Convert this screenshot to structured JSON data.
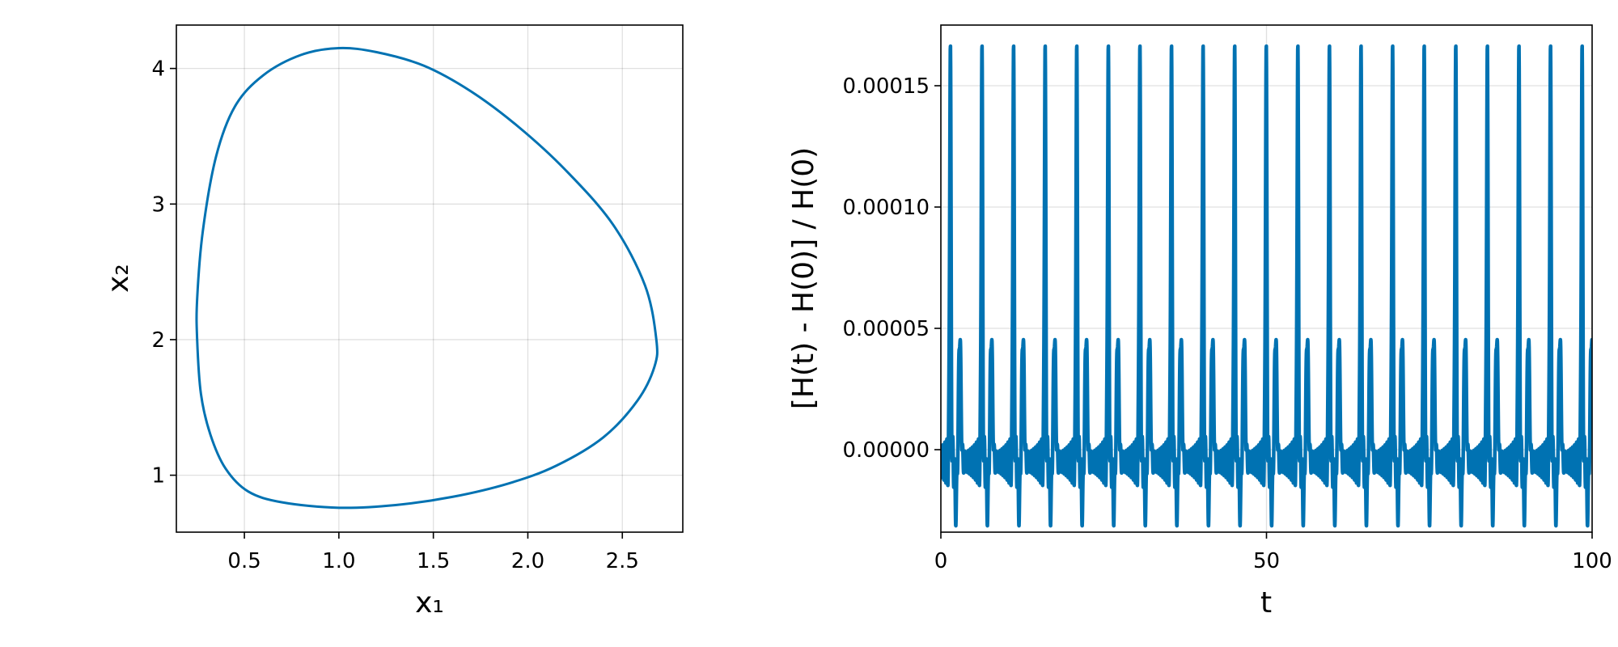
{
  "chart_data": [
    {
      "type": "line",
      "title": "",
      "xlabel": "x₁",
      "ylabel": "x₂",
      "xlim": [
        0.14,
        2.82
      ],
      "ylim": [
        0.58,
        4.32
      ],
      "xticks": [
        0.5,
        1.0,
        1.5,
        2.0,
        2.5
      ],
      "xtick_labels": [
        "0.5",
        "1.0",
        "1.5",
        "2.0",
        "2.5"
      ],
      "yticks": [
        1,
        2,
        3,
        4
      ],
      "ytick_labels": [
        "1",
        "2",
        "3",
        "4"
      ],
      "grid": true,
      "color": "#0072b2",
      "series": [
        {
          "closed": true,
          "points": [
            [
              2.68,
              2.0
            ],
            [
              2.62,
              2.4
            ],
            [
              2.45,
              2.85
            ],
            [
              2.2,
              3.25
            ],
            [
              1.95,
              3.57
            ],
            [
              1.7,
              3.83
            ],
            [
              1.45,
              4.02
            ],
            [
              1.2,
              4.12
            ],
            [
              1.0,
              4.15
            ],
            [
              0.8,
              4.1
            ],
            [
              0.6,
              3.95
            ],
            [
              0.45,
              3.72
            ],
            [
              0.35,
              3.35
            ],
            [
              0.28,
              2.8
            ],
            [
              0.25,
              2.3
            ],
            [
              0.25,
              2.0
            ],
            [
              0.27,
              1.6
            ],
            [
              0.32,
              1.3
            ],
            [
              0.4,
              1.05
            ],
            [
              0.52,
              0.88
            ],
            [
              0.7,
              0.8
            ],
            [
              1.0,
              0.76
            ],
            [
              1.3,
              0.78
            ],
            [
              1.6,
              0.84
            ],
            [
              1.9,
              0.94
            ],
            [
              2.15,
              1.07
            ],
            [
              2.4,
              1.28
            ],
            [
              2.58,
              1.55
            ],
            [
              2.67,
              1.8
            ]
          ]
        }
      ]
    },
    {
      "type": "line",
      "title": "",
      "xlabel": "t",
      "ylabel": "[H(t) - H(0)] / H(0)",
      "xlim": [
        0,
        100
      ],
      "ylim": [
        -3.4e-05,
        0.000175
      ],
      "xticks": [
        0,
        50,
        100
      ],
      "xtick_labels": [
        "0",
        "50",
        "100"
      ],
      "yticks": [
        0.0,
        5e-05,
        0.0001,
        0.00015
      ],
      "ytick_labels": [
        "0.00000",
        "0.00005",
        "0.00010",
        "0.00015"
      ],
      "grid": true,
      "color": "#0072b2",
      "series": [
        {
          "period": 4.85,
          "phase": 1.45,
          "peak_value": 0.000165,
          "secondary_peak_value": 3.55e-05,
          "trough_value": -2.4e-05,
          "baseline_value": -5e-06
        }
      ]
    }
  ]
}
